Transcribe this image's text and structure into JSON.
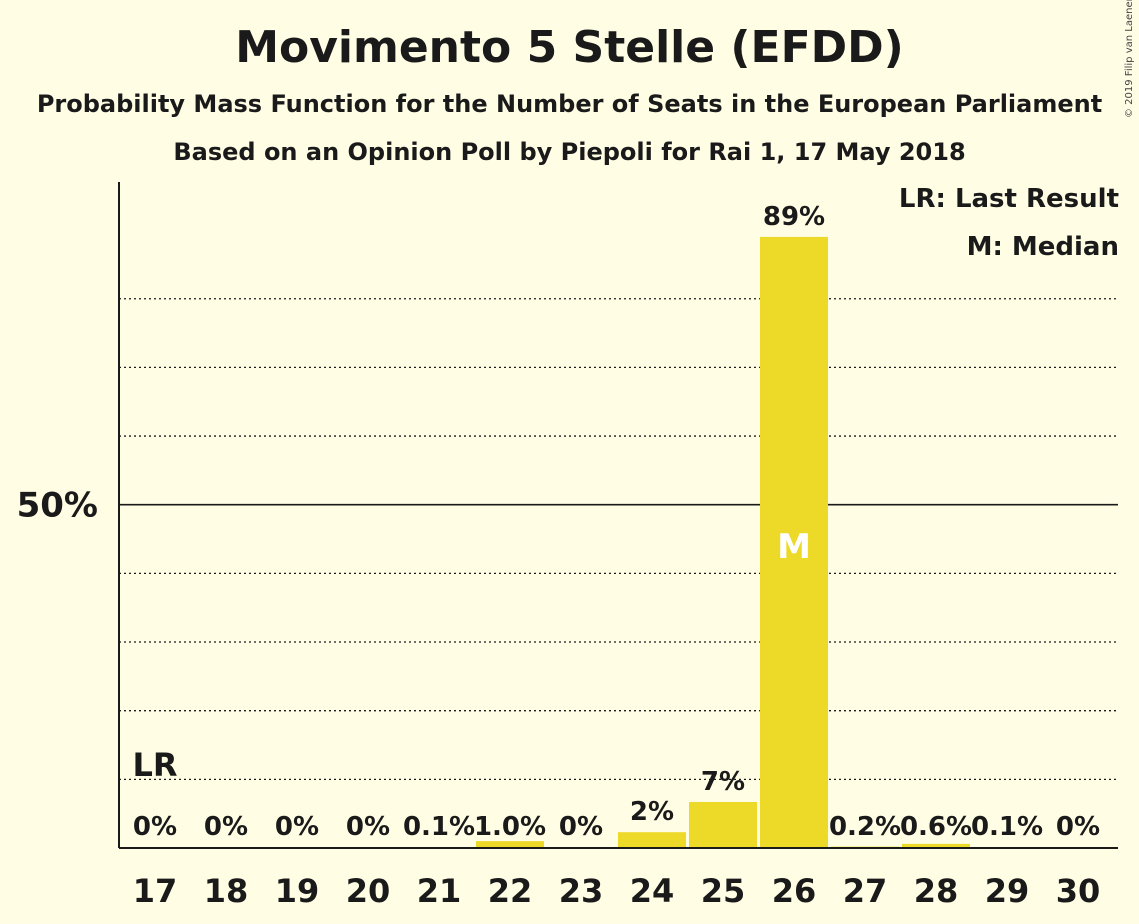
{
  "title": "Movimento 5 Stelle (EFDD)",
  "subtitle": "Probability Mass Function for the Number of Seats in the European Parliament",
  "subtitle2": "Based on an Opinion Poll by Piepoli for Rai 1, 17 May 2018",
  "copyright": "© 2019 Filip van Laenen",
  "legend": {
    "last_result": "LR: Last Result",
    "median": "M: Median"
  },
  "colors": {
    "bar": "#EDD927",
    "background": "#FFFDE4",
    "text": "#1a1a1a"
  },
  "chart_data": {
    "type": "bar",
    "categories": [
      "17",
      "18",
      "19",
      "20",
      "21",
      "22",
      "23",
      "24",
      "25",
      "26",
      "27",
      "28",
      "29",
      "30"
    ],
    "values": [
      0,
      0,
      0,
      0,
      0.1,
      1.0,
      0,
      2.3,
      6.7,
      89,
      0.2,
      0.6,
      0.1,
      0
    ],
    "labels": [
      "0%",
      "0%",
      "0%",
      "0%",
      "0.1%",
      "1.0%",
      "0%",
      "2%",
      "7%",
      "89%",
      "0.2%",
      "0.6%",
      "0.1%",
      "0%"
    ],
    "ylim": [
      0,
      97
    ],
    "y_ticks": [
      {
        "value": 50,
        "label": "50%"
      }
    ],
    "gridlines": [
      10,
      20,
      30,
      40,
      60,
      70,
      80
    ],
    "last_result": {
      "category": "17",
      "label": "LR"
    },
    "median": {
      "category": "26",
      "label": "M"
    },
    "legend_position": "top-right",
    "grid": true
  }
}
